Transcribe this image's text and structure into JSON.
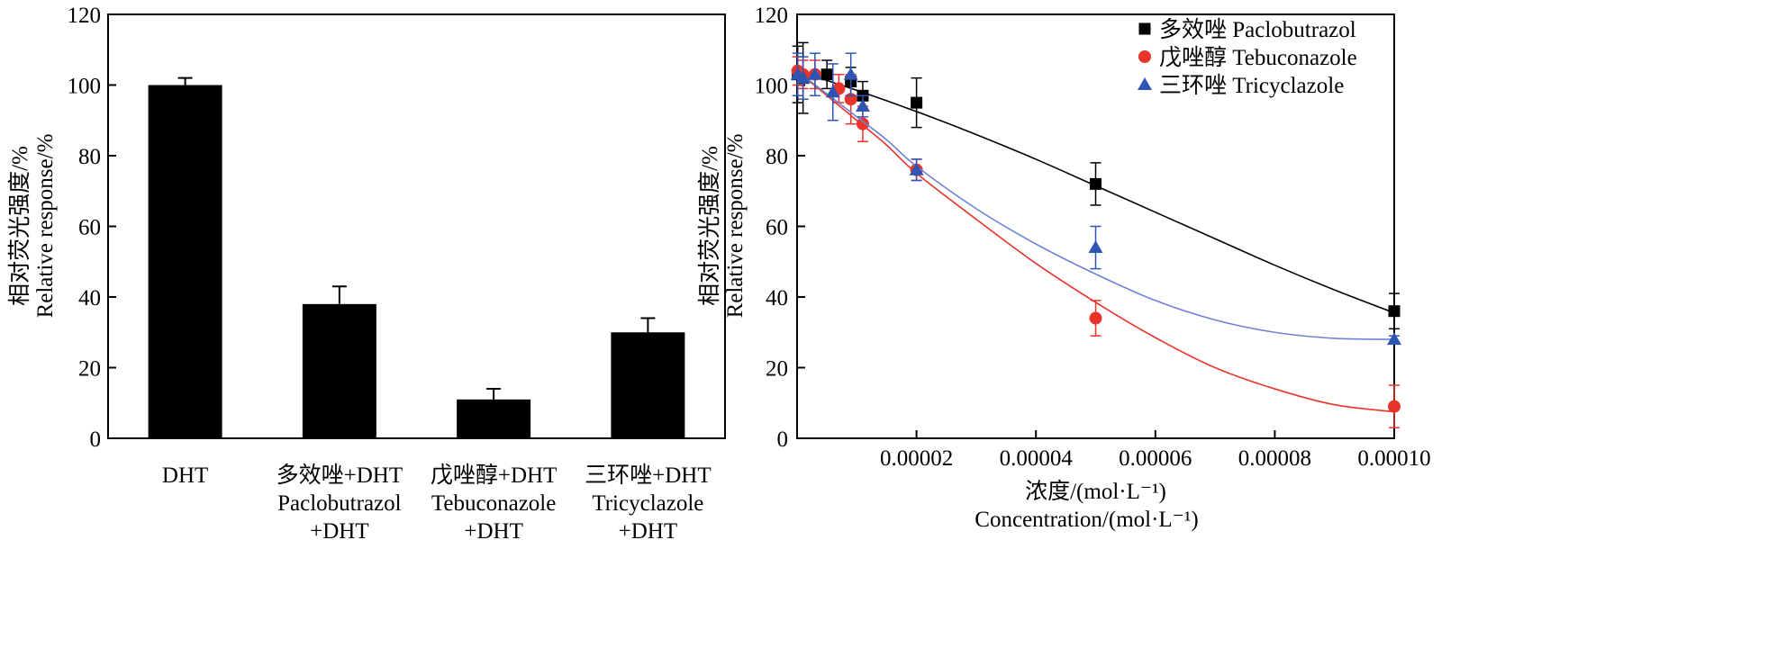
{
  "chart_data": [
    {
      "type": "bar",
      "title": "",
      "xlabel": "",
      "ylabel_lines": [
        "相对荧光强度/%",
        "Relative response/%"
      ],
      "ylim": [
        0,
        120
      ],
      "yticks": [
        0,
        20,
        40,
        60,
        80,
        100,
        120
      ],
      "grid": false,
      "color": "#000000",
      "categories": [
        {
          "lines": [
            "DHT"
          ]
        },
        {
          "lines": [
            "多效唑+DHT",
            "Paclobutrazol",
            "+DHT"
          ]
        },
        {
          "lines": [
            "戊唑醇+DHT",
            "Tebuconazole",
            "+DHT"
          ]
        },
        {
          "lines": [
            "三环唑+DHT",
            "Tricyclazole",
            "+DHT"
          ]
        }
      ],
      "values": [
        100,
        38,
        11,
        30
      ],
      "errors": [
        2,
        5,
        3,
        4
      ]
    },
    {
      "type": "scatter",
      "title": "",
      "xlabel_lines": [
        "浓度/(mol·L⁻¹)",
        "Concentration/(mol·L⁻¹)"
      ],
      "ylabel_lines": [
        "相对荧光强度/%",
        "Relative response/%"
      ],
      "xlim": [
        0,
        0.0001
      ],
      "ylim": [
        0,
        120
      ],
      "xticks": [
        "0.00002",
        "0.00004",
        "0.00006",
        "0.00008",
        "0.00010"
      ],
      "xtick_values": [
        2e-05,
        4e-05,
        6e-05,
        8e-05,
        0.0001
      ],
      "yticks": [
        0,
        20,
        40,
        60,
        80,
        100,
        120
      ],
      "grid": false,
      "legend_position": "top-right",
      "series": [
        {
          "name": "多效唑 Paclobutrazol",
          "marker": "square",
          "color": "#000000",
          "line_color": "#000000",
          "x": [
            1e-07,
            1e-06,
            5e-06,
            9e-06,
            1.1e-05,
            2e-05,
            5e-05,
            0.0001
          ],
          "y": [
            103,
            102,
            103,
            101,
            97,
            95,
            72,
            36
          ],
          "err": [
            8,
            10,
            4,
            4,
            4,
            7,
            6,
            5
          ],
          "fit_x": [
            0,
            1e-05,
            2e-05,
            3e-05,
            4e-05,
            5e-05,
            6e-05,
            7e-05,
            8e-05,
            9e-05,
            0.0001
          ],
          "fit_y": [
            104,
            98.5,
            92.5,
            86,
            79,
            71.5,
            64,
            56.5,
            49,
            42,
            35.5
          ]
        },
        {
          "name": "戊唑醇 Tebuconazole",
          "marker": "circle",
          "color": "#e8342a",
          "line_color": "#e8342a",
          "x": [
            1e-07,
            1e-06,
            3e-06,
            7e-06,
            9e-06,
            1.1e-05,
            2e-05,
            5e-05,
            0.0001
          ],
          "y": [
            104,
            103,
            103,
            99,
            96,
            89,
            76,
            34,
            9
          ],
          "err": [
            4,
            4,
            4,
            4,
            7,
            5,
            3,
            5,
            6
          ],
          "fit_x": [
            0,
            5e-06,
            1e-05,
            1.5e-05,
            2e-05,
            3e-05,
            4e-05,
            5e-05,
            6e-05,
            7e-05,
            8e-05,
            9e-05,
            0.0001
          ],
          "fit_y": [
            104,
            97,
            90,
            83,
            75,
            62,
            49.5,
            38.5,
            28.5,
            20,
            14,
            9.5,
            7.5
          ]
        },
        {
          "name": "三环唑 Tricyclazole",
          "marker": "triangle",
          "color": "#2f55b4",
          "line_color": "#6f84d6",
          "x": [
            1e-07,
            1e-06,
            3e-06,
            6e-06,
            9e-06,
            1.1e-05,
            2e-05,
            5e-05,
            0.0001
          ],
          "y": [
            103,
            102,
            103,
            98,
            103,
            94,
            76,
            54,
            28
          ],
          "err": [
            6,
            6,
            6,
            8,
            6,
            3,
            3,
            6,
            1
          ],
          "fit_x": [
            0,
            5e-06,
            1e-05,
            1.5e-05,
            2e-05,
            3e-05,
            4e-05,
            5e-05,
            6e-05,
            7e-05,
            8e-05,
            9e-05,
            0.0001
          ],
          "fit_y": [
            104,
            97.5,
            91,
            84.5,
            77,
            65,
            55,
            46.5,
            39,
            33.5,
            30,
            28.3,
            28
          ]
        }
      ]
    }
  ]
}
